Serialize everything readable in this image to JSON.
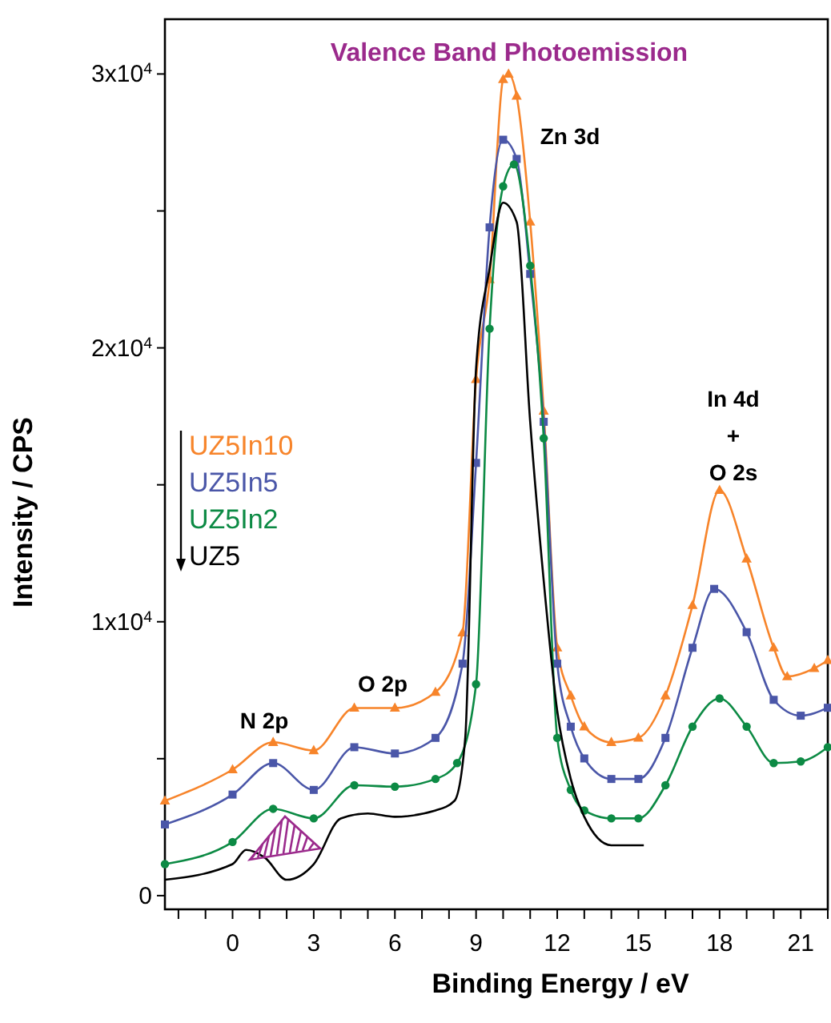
{
  "chart_data": {
    "type": "line",
    "title": "Valence Band Photoemission",
    "xlabel": "Binding Energy / eV",
    "ylabel": "Intensity / CPS",
    "xlim": [
      -2.5,
      22
    ],
    "ylim": [
      -500,
      32000
    ],
    "xticks": [
      {
        "value": -2,
        "label": null
      },
      {
        "value": -1,
        "label": null
      },
      0,
      {
        "value": 1,
        "label": null
      },
      {
        "value": 2,
        "label": null
      },
      3,
      {
        "value": 4,
        "label": null
      },
      {
        "value": 5,
        "label": null
      },
      6,
      {
        "value": 7,
        "label": null
      },
      {
        "value": 8,
        "label": null
      },
      9,
      {
        "value": 10,
        "label": null
      },
      {
        "value": 11,
        "label": null
      },
      12,
      {
        "value": 13,
        "label": null
      },
      {
        "value": 14,
        "label": null
      },
      15,
      {
        "value": 16,
        "label": null
      },
      {
        "value": 17,
        "label": null
      },
      18,
      {
        "value": 19,
        "label": null
      },
      {
        "value": 20,
        "label": null
      },
      21,
      {
        "value": 22,
        "label": null
      }
    ],
    "yticks": [
      {
        "value": 0,
        "label": "0"
      },
      {
        "value": 5000,
        "label": null
      },
      {
        "value": 10000,
        "label": "1x10$^{4}$"
      },
      {
        "value": 15000,
        "label": null
      },
      {
        "value": 20000,
        "label": "2x10$^{4}$"
      },
      {
        "value": 25000,
        "label": null
      },
      {
        "value": 30000,
        "label": "3x10$^{4}$"
      }
    ],
    "grid": false,
    "legend": "left",
    "line_style": "solid",
    "series": [
      {
        "name": "UZ5In10",
        "color": "#f7842a",
        "marker": "triangle",
        "x": [
          -2.5,
          0,
          1.5,
          3,
          4.5,
          6,
          7.5,
          8.5,
          9,
          9.5,
          10,
          10.2,
          10.5,
          11,
          11.5,
          12,
          12.5,
          13,
          14,
          15,
          16,
          17,
          18,
          19,
          20,
          20.5,
          21.5,
          22
        ],
        "values": [
          3460,
          4600,
          5600,
          5300,
          6850,
          6850,
          7430,
          9600,
          18850,
          22500,
          29800,
          30000,
          29200,
          24600,
          17700,
          9050,
          7300,
          6170,
          5600,
          5760,
          7300,
          10600,
          14800,
          12300,
          9050,
          8000,
          8300,
          8590
        ]
      },
      {
        "name": "UZ5In5",
        "color": "#4a56a8",
        "marker": "square",
        "x": [
          -2.5,
          0,
          1.5,
          3,
          4.5,
          6,
          7.5,
          8.5,
          9,
          9.5,
          10,
          10.5,
          11,
          11.5,
          12,
          12.5,
          13,
          14,
          15,
          16,
          17,
          17.8,
          19,
          20,
          21,
          22
        ],
        "values": [
          2600,
          3690,
          4840,
          3860,
          5420,
          5190,
          5760,
          8470,
          15800,
          24400,
          27600,
          26900,
          22700,
          17300,
          8470,
          6170,
          5010,
          4260,
          4260,
          5760,
          9050,
          11200,
          9620,
          7150,
          6570,
          6860
        ]
      },
      {
        "name": "UZ5In2",
        "color": "#0c8a44",
        "marker": "circle",
        "x": [
          -2.5,
          0,
          1.5,
          3,
          4.5,
          6,
          7.5,
          8.3,
          9,
          9.5,
          10,
          10.4,
          11,
          11.5,
          12,
          12.5,
          13,
          14,
          15,
          16,
          17,
          18,
          19,
          20,
          21,
          22
        ],
        "values": [
          1150,
          1960,
          3170,
          2820,
          4030,
          3980,
          4260,
          4840,
          7720,
          20700,
          25900,
          26700,
          23000,
          16700,
          5760,
          3860,
          3110,
          2820,
          2820,
          4030,
          6170,
          7200,
          6170,
          4840,
          4900,
          5420
        ]
      },
      {
        "name": "UZ5",
        "color": "#000000",
        "marker": "none",
        "x": [
          -2.5,
          0,
          0.5,
          1.2,
          2,
          3,
          4,
          5,
          6,
          7.5,
          8.2,
          8.6,
          9,
          9.5,
          10,
          10.5,
          11,
          11.5,
          12,
          12.5,
          13,
          14,
          15.2
        ],
        "values": [
          580,
          1150,
          1670,
          1380,
          580,
          1150,
          2820,
          3000,
          2880,
          3110,
          3460,
          5760,
          19250,
          22900,
          25300,
          24600,
          17300,
          11500,
          6740,
          4260,
          2880,
          1840,
          1840
        ]
      }
    ],
    "annotations": [
      "Zn 3d",
      "N 2p",
      "O 2p",
      "In 4d\n+\nO 2s"
    ]
  }
}
